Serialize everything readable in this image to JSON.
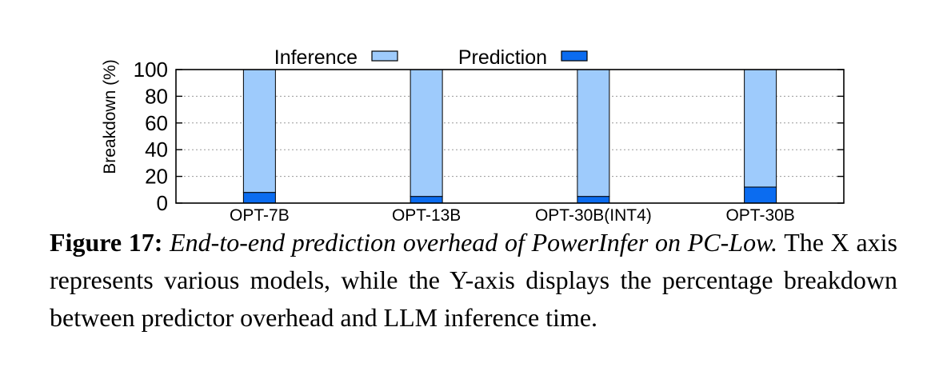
{
  "colors": {
    "inference": "#9ecbfc",
    "prediction": "#0b6cf0",
    "axis": "#000000",
    "grid": "#9a9a9a"
  },
  "chart_data": {
    "type": "bar",
    "stacked": true,
    "categories": [
      "OPT-7B",
      "OPT-13B",
      "OPT-30B(INT4)",
      "OPT-30B"
    ],
    "series": [
      {
        "name": "Inference",
        "values": [
          92,
          95,
          95,
          88
        ]
      },
      {
        "name": "Prediction",
        "values": [
          8,
          5,
          5,
          12
        ]
      }
    ],
    "ylabel": "Breakdown (%)",
    "xlabel": "",
    "ylim": [
      0,
      100
    ],
    "yticks": [
      "0",
      "20",
      "40",
      "60",
      "80",
      "100"
    ],
    "grid": "dotted horizontal",
    "legend": "top-center"
  },
  "caption": {
    "label": "Figure 17:",
    "title": "End-to-end prediction overhead of PowerInfer on PC-Low.",
    "body": "The X axis represents various models, while the Y-axis displays the percentage breakdown between predictor overhead and LLM inference time."
  }
}
